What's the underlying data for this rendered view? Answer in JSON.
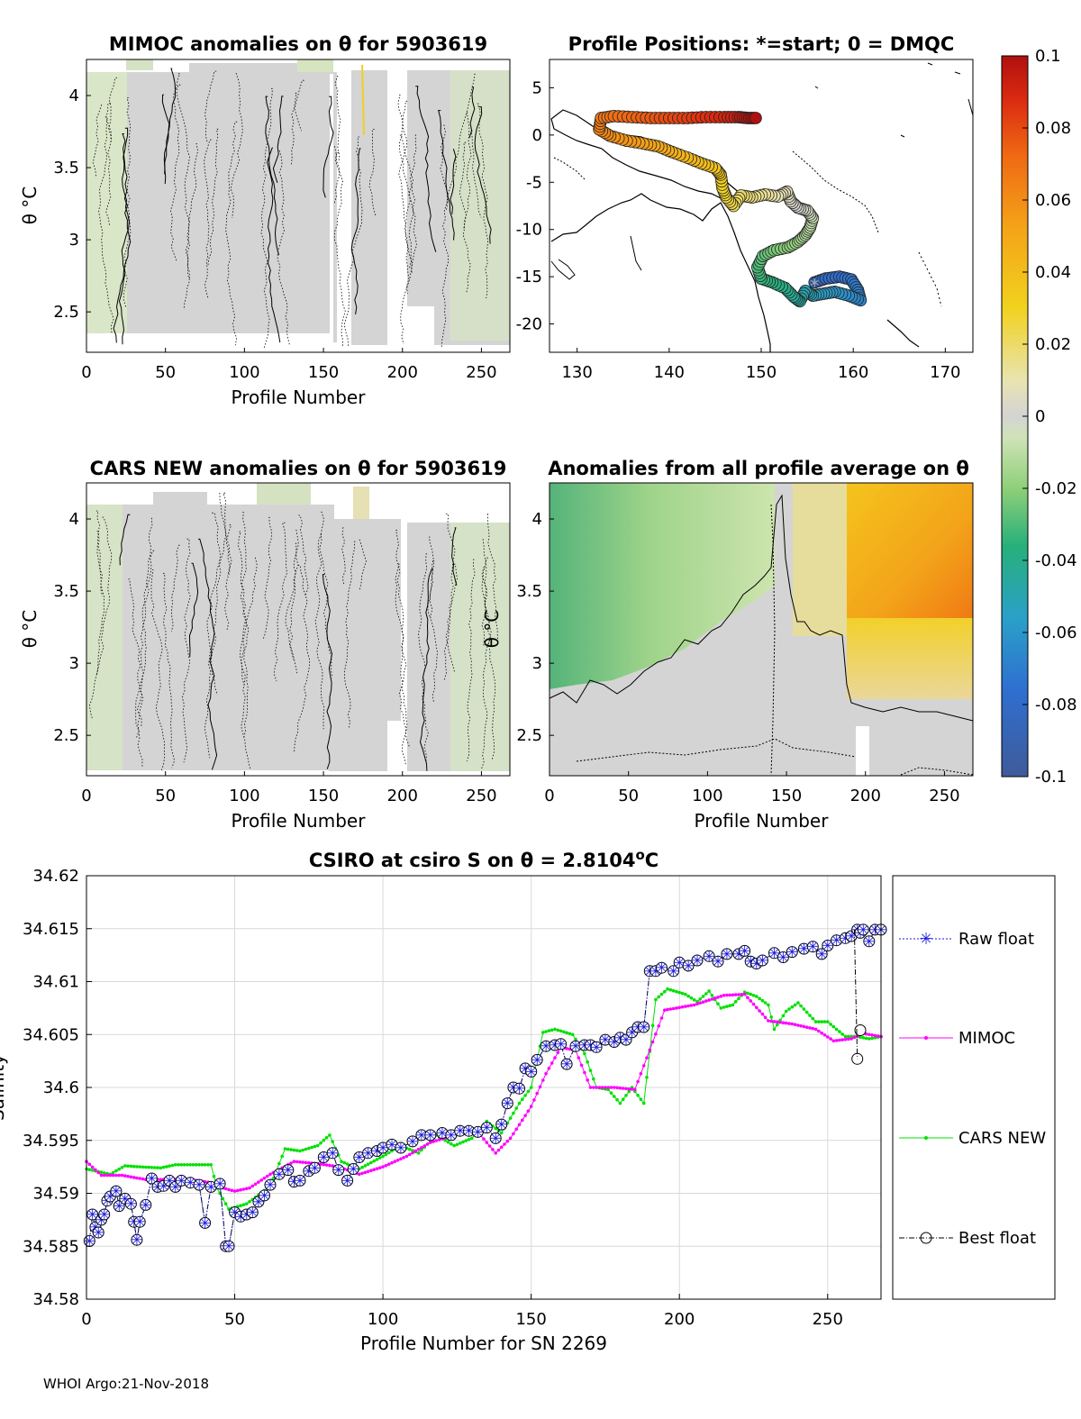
{
  "footer": "WHOI Argo:21-Nov-2018",
  "colors": {
    "raw": "#1a1adb",
    "mimoc": "#ff00ff",
    "cars": "#00e000",
    "best": "#000000",
    "grid": "#d9d9d9",
    "anom_neutral": "#d4d4d4"
  },
  "chart_data": [
    {
      "id": "mimoc_panel",
      "type": "heatmap",
      "title": "MIMOC anomalies on θ  for 5903619",
      "xlabel": "Profile Number",
      "ylabel": "θ °C",
      "xlim": [
        0,
        268
      ],
      "ylim": [
        2.22,
        4.25
      ],
      "xticks": [
        0,
        50,
        100,
        150,
        200,
        250
      ],
      "yticks": [
        2.5,
        3,
        3.5,
        4
      ],
      "ytick_labels": [
        "2.5",
        "3",
        "3.5",
        "4"
      ]
    },
    {
      "id": "positions_panel",
      "type": "scatter",
      "title": "Profile Positions: *=start; 0 = DMQC",
      "xlim": [
        127,
        173
      ],
      "ylim": [
        -23,
        8
      ],
      "xticks": [
        130,
        140,
        150,
        160,
        170
      ],
      "yticks": [
        5,
        0,
        -5,
        -10,
        -15,
        -20
      ],
      "track": [
        [
          155.8,
          -15.6
        ],
        [
          157,
          -15.2
        ],
        [
          158.5,
          -15.0
        ],
        [
          159.8,
          -15.3
        ],
        [
          160.5,
          -16.4
        ],
        [
          160.8,
          -17.5
        ],
        [
          159.5,
          -17.0
        ],
        [
          158.0,
          -16.6
        ],
        [
          156.8,
          -16.8
        ],
        [
          155.6,
          -17.0
        ],
        [
          154.8,
          -16.5
        ],
        [
          154.2,
          -17.6
        ],
        [
          153.5,
          -17.1
        ],
        [
          152.6,
          -16.2
        ],
        [
          151.2,
          -15.6
        ],
        [
          150.0,
          -15.2
        ],
        [
          149.6,
          -14.0
        ],
        [
          150.2,
          -12.8
        ],
        [
          151.4,
          -12.2
        ],
        [
          152.9,
          -11.9
        ],
        [
          154.0,
          -11.3
        ],
        [
          154.8,
          -10.6
        ],
        [
          155.3,
          -9.8
        ],
        [
          155.6,
          -8.8
        ],
        [
          155.0,
          -8.0
        ],
        [
          154.0,
          -7.7
        ],
        [
          153.2,
          -7.0
        ],
        [
          152.8,
          -6.0
        ],
        [
          151.8,
          -6.5
        ],
        [
          150.4,
          -6.3
        ],
        [
          149.0,
          -6.6
        ],
        [
          147.8,
          -6.4
        ],
        [
          147.0,
          -7.5
        ],
        [
          146.2,
          -6.6
        ],
        [
          145.8,
          -5.6
        ],
        [
          145.6,
          -4.2
        ],
        [
          145.0,
          -3.5
        ],
        [
          143.5,
          -3.0
        ],
        [
          142.0,
          -2.4
        ],
        [
          140.3,
          -1.8
        ],
        [
          138.8,
          -1.2
        ],
        [
          137.2,
          -0.9
        ],
        [
          135.4,
          -0.6
        ],
        [
          133.6,
          -0.1
        ],
        [
          132.4,
          0.6
        ],
        [
          132.6,
          1.8
        ],
        [
          134.0,
          2.0
        ],
        [
          136.0,
          1.9
        ],
        [
          138.0,
          1.8
        ],
        [
          140.0,
          1.8
        ],
        [
          142.0,
          1.8
        ],
        [
          144.0,
          1.9
        ],
        [
          146.0,
          1.9
        ],
        [
          147.5,
          1.9
        ],
        [
          148.5,
          1.8
        ],
        [
          149.4,
          1.8
        ]
      ]
    },
    {
      "id": "cars_panel",
      "type": "heatmap",
      "title": "CARS NEW anomalies on θ for 5903619",
      "xlabel": "Profile Number",
      "ylabel": "θ °C",
      "xlim": [
        0,
        268
      ],
      "ylim": [
        2.22,
        4.25
      ],
      "xticks": [
        0,
        50,
        100,
        150,
        200,
        250
      ],
      "yticks": [
        2.5,
        3,
        3.5,
        4
      ],
      "ytick_labels": [
        "2.5",
        "3",
        "3.5",
        "4"
      ]
    },
    {
      "id": "allavg_panel",
      "type": "heatmap",
      "title": "Anomalies from all profile average on θ",
      "xlabel": "Profile Number",
      "ylabel": "θ °C",
      "xlim": [
        0,
        268
      ],
      "ylim": [
        2.22,
        4.25
      ],
      "xticks": [
        0,
        50,
        100,
        150,
        200,
        250
      ],
      "yticks": [
        2.5,
        3,
        3.5,
        4
      ],
      "ytick_labels": [
        "2.5",
        "3",
        "3.5",
        "4"
      ]
    },
    {
      "id": "colorbar",
      "type": "colorbar",
      "range": [
        -0.1,
        0.1
      ],
      "ticks": [
        0.1,
        0.08,
        0.06,
        0.04,
        0.02,
        0,
        -0.02,
        -0.04,
        -0.06,
        -0.08,
        -0.1
      ],
      "tick_labels": [
        "0.1",
        "0.08",
        "0.06",
        "0.04",
        "0.02",
        "0",
        "-0.02",
        "-0.04",
        "-0.06",
        "-0.08",
        "-0.1"
      ]
    },
    {
      "id": "salinity_panel",
      "type": "line",
      "title": "CSIRO at csiro S on θ = 2.8104°C",
      "title_main": "CSIRO at csiro S on θ = 2.8104",
      "title_unit": "o",
      "title_end": "C",
      "xlabel": "Profile Number for SN 2269",
      "ylabel": "Salinity",
      "xlim": [
        0,
        268
      ],
      "ylim": [
        34.58,
        34.62
      ],
      "xticks": [
        0,
        50,
        100,
        150,
        200,
        250
      ],
      "yticks": [
        34.58,
        34.585,
        34.59,
        34.595,
        34.6,
        34.605,
        34.61,
        34.615,
        34.62
      ],
      "ytick_labels": [
        "34.58",
        "34.585",
        "34.59",
        "34.595",
        "34.6",
        "34.605",
        "34.61",
        "34.615",
        "34.62"
      ],
      "legend": [
        "Raw float",
        "MIMOC",
        "CARS NEW",
        "Best float"
      ],
      "raw_anchors": [
        [
          1,
          34.5855
        ],
        [
          2,
          34.588
        ],
        [
          3,
          34.5868
        ],
        [
          4,
          34.5863
        ],
        [
          5,
          34.5875
        ],
        [
          6,
          34.588
        ],
        [
          7,
          34.5893
        ],
        [
          8,
          34.5897
        ],
        [
          10,
          34.5902
        ],
        [
          11,
          34.5888
        ],
        [
          13,
          34.5895
        ],
        [
          15,
          34.589
        ],
        [
          16,
          34.5873
        ],
        [
          17,
          34.5856
        ],
        [
          18,
          34.5873
        ],
        [
          20,
          34.5889
        ],
        [
          22,
          34.5914
        ],
        [
          24,
          34.5906
        ],
        [
          26,
          34.5907
        ],
        [
          28,
          34.5912
        ],
        [
          30,
          34.5906
        ],
        [
          32,
          34.5912
        ],
        [
          35,
          34.591
        ],
        [
          38,
          34.5908
        ],
        [
          40,
          34.5872
        ],
        [
          42,
          34.5906
        ],
        [
          45,
          34.5909
        ],
        [
          47,
          34.585
        ],
        [
          48,
          34.585
        ],
        [
          50,
          34.5882
        ],
        [
          52,
          34.5878
        ],
        [
          54,
          34.588
        ],
        [
          56,
          34.5882
        ],
        [
          58,
          34.5892
        ],
        [
          60,
          34.5898
        ],
        [
          62,
          34.5908
        ],
        [
          65,
          34.5918
        ],
        [
          68,
          34.5922
        ],
        [
          70,
          34.5911
        ],
        [
          72,
          34.5912
        ],
        [
          75,
          34.5921
        ],
        [
          77,
          34.5924
        ],
        [
          80,
          34.5934
        ],
        [
          83,
          34.5938
        ],
        [
          85,
          34.5922
        ],
        [
          88,
          34.5912
        ],
        [
          90,
          34.5923
        ],
        [
          92,
          34.5934
        ],
        [
          95,
          34.5938
        ],
        [
          98,
          34.594
        ],
        [
          100,
          34.5943
        ],
        [
          103,
          34.5946
        ],
        [
          106,
          34.5943
        ],
        [
          110,
          34.5949
        ],
        [
          113,
          34.5955
        ],
        [
          116,
          34.5955
        ],
        [
          120,
          34.5957
        ],
        [
          123,
          34.5955
        ],
        [
          126,
          34.5959
        ],
        [
          129,
          34.5959
        ],
        [
          132,
          34.5958
        ],
        [
          135,
          34.5962
        ],
        [
          138,
          34.5952
        ],
        [
          140,
          34.5965
        ],
        [
          142,
          34.5985
        ],
        [
          144,
          34.6
        ],
        [
          146,
          34.5999
        ],
        [
          148,
          34.6018
        ],
        [
          150,
          34.6015
        ],
        [
          152,
          34.6026
        ],
        [
          155,
          34.6039
        ],
        [
          158,
          34.604
        ],
        [
          160,
          34.6041
        ],
        [
          162,
          34.6022
        ],
        [
          165,
          34.6039
        ],
        [
          168,
          34.604
        ],
        [
          170,
          34.604
        ],
        [
          172,
          34.6038
        ],
        [
          175,
          34.6045
        ],
        [
          178,
          34.6043
        ],
        [
          180,
          34.6047
        ],
        [
          182,
          34.6045
        ],
        [
          184,
          34.6052
        ],
        [
          186,
          34.6057
        ],
        [
          188,
          34.6057
        ],
        [
          190,
          34.611
        ],
        [
          192,
          34.611
        ],
        [
          194,
          34.6113
        ],
        [
          198,
          34.611
        ],
        [
          200,
          34.6118
        ],
        [
          203,
          34.6115
        ],
        [
          206,
          34.612
        ],
        [
          210,
          34.6124
        ],
        [
          213,
          34.6119
        ],
        [
          216,
          34.6126
        ],
        [
          220,
          34.6126
        ],
        [
          222,
          34.6129
        ],
        [
          224,
          34.6119
        ],
        [
          226,
          34.6117
        ],
        [
          228,
          34.612
        ],
        [
          232,
          34.6127
        ],
        [
          235,
          34.6123
        ],
        [
          238,
          34.6128
        ],
        [
          242,
          34.6131
        ],
        [
          245,
          34.6133
        ],
        [
          248,
          34.6126
        ],
        [
          250,
          34.6134
        ],
        [
          253,
          34.6139
        ],
        [
          256,
          34.6141
        ],
        [
          258,
          34.6143
        ],
        [
          260,
          34.6149
        ],
        [
          261,
          34.6146
        ],
        [
          262,
          34.6149
        ],
        [
          264,
          34.6138
        ],
        [
          266,
          34.6149
        ],
        [
          268,
          34.6149
        ]
      ],
      "best_extra": [
        [
          260,
          34.6027
        ],
        [
          261,
          34.6054
        ]
      ],
      "mimoc_anchors": [
        [
          0,
          34.593
        ],
        [
          5,
          34.5917
        ],
        [
          12,
          34.5917
        ],
        [
          20,
          34.5913
        ],
        [
          35,
          34.5913
        ],
        [
          42,
          34.591
        ],
        [
          46,
          34.5905
        ],
        [
          50,
          34.5902
        ],
        [
          55,
          34.5905
        ],
        [
          62,
          34.5918
        ],
        [
          70,
          34.593
        ],
        [
          78,
          34.5928
        ],
        [
          85,
          34.5925
        ],
        [
          92,
          34.5918
        ],
        [
          100,
          34.5925
        ],
        [
          108,
          34.5935
        ],
        [
          116,
          34.5948
        ],
        [
          124,
          34.5955
        ],
        [
          132,
          34.5958
        ],
        [
          138,
          34.5938
        ],
        [
          143,
          34.5952
        ],
        [
          150,
          34.5982
        ],
        [
          155,
          34.6013
        ],
        [
          160,
          34.6038
        ],
        [
          165,
          34.6035
        ],
        [
          170,
          34.6
        ],
        [
          178,
          34.6
        ],
        [
          185,
          34.5998
        ],
        [
          195,
          34.6073
        ],
        [
          205,
          34.6078
        ],
        [
          215,
          34.6087
        ],
        [
          222,
          34.6088
        ],
        [
          230,
          34.6063
        ],
        [
          238,
          34.606
        ],
        [
          246,
          34.6055
        ],
        [
          252,
          34.6044
        ],
        [
          258,
          34.6046
        ],
        [
          262,
          34.6051
        ],
        [
          268,
          34.6048
        ]
      ],
      "cars_anchors": [
        [
          0,
          34.5923
        ],
        [
          8,
          34.5918
        ],
        [
          13,
          34.5926
        ],
        [
          18,
          34.5925
        ],
        [
          25,
          34.5924
        ],
        [
          30,
          34.5927
        ],
        [
          35,
          34.5927
        ],
        [
          42,
          34.5927
        ],
        [
          44,
          34.5905
        ],
        [
          48,
          34.5885
        ],
        [
          54,
          34.589
        ],
        [
          62,
          34.5907
        ],
        [
          67,
          34.5942
        ],
        [
          72,
          34.594
        ],
        [
          78,
          34.5945
        ],
        [
          82,
          34.5955
        ],
        [
          86,
          34.593
        ],
        [
          92,
          34.5923
        ],
        [
          100,
          34.5935
        ],
        [
          106,
          34.5945
        ],
        [
          112,
          34.5938
        ],
        [
          118,
          34.5955
        ],
        [
          124,
          34.5945
        ],
        [
          130,
          34.5952
        ],
        [
          135,
          34.5968
        ],
        [
          140,
          34.5957
        ],
        [
          146,
          34.5985
        ],
        [
          150,
          34.6
        ],
        [
          154,
          34.6052
        ],
        [
          158,
          34.6055
        ],
        [
          164,
          34.605
        ],
        [
          168,
          34.6032
        ],
        [
          172,
          34.6
        ],
        [
          176,
          34.5998
        ],
        [
          180,
          34.5985
        ],
        [
          184,
          34.6
        ],
        [
          188,
          34.5985
        ],
        [
          192,
          34.6083
        ],
        [
          196,
          34.6093
        ],
        [
          202,
          34.6088
        ],
        [
          206,
          34.6081
        ],
        [
          210,
          34.6091
        ],
        [
          214,
          34.6075
        ],
        [
          218,
          34.6078
        ],
        [
          222,
          34.609
        ],
        [
          226,
          34.6086
        ],
        [
          230,
          34.6078
        ],
        [
          232,
          34.6055
        ],
        [
          236,
          34.6072
        ],
        [
          240,
          34.608
        ],
        [
          246,
          34.6062
        ],
        [
          250,
          34.6062
        ],
        [
          256,
          34.6048
        ],
        [
          260,
          34.6048
        ],
        [
          264,
          34.6046
        ],
        [
          268,
          34.6048
        ]
      ]
    }
  ]
}
